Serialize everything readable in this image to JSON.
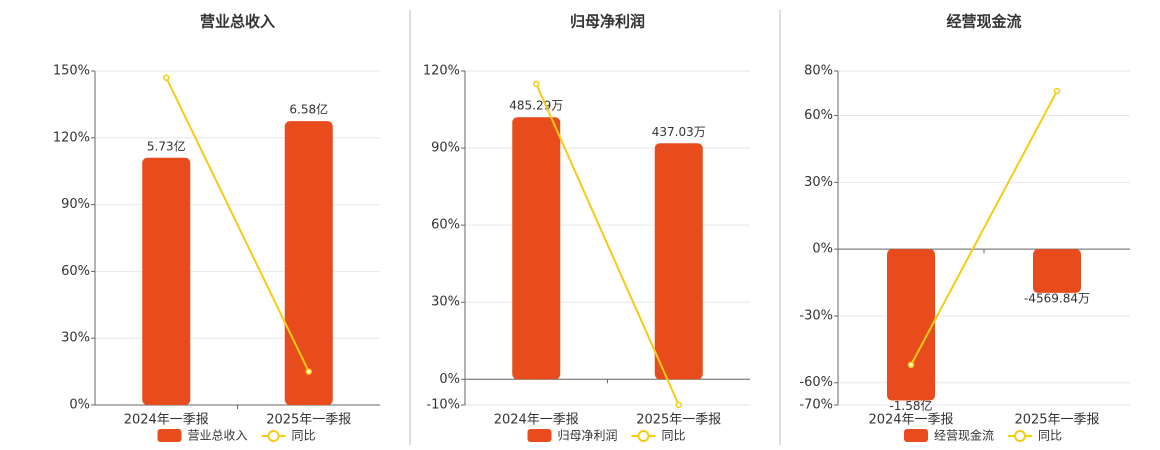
{
  "chart_data": [
    {
      "type": "bar-line",
      "title": "营业总收入",
      "categories": [
        "2024年一季报",
        "2025年一季报"
      ],
      "series": [
        {
          "name": "营业总收入",
          "type": "bar",
          "color": "#e84c1c",
          "values": [
            573000000,
            658000000
          ],
          "value_labels": [
            "5.73亿",
            "6.58亿"
          ]
        },
        {
          "name": "同比",
          "type": "line",
          "color": "#f5cc12",
          "values": [
            147,
            15
          ]
        }
      ],
      "ylim": [
        0,
        150
      ],
      "yticks": [
        {
          "value": 0,
          "label": "0%"
        },
        {
          "value": 30,
          "label": "30%"
        },
        {
          "value": 60,
          "label": "60%"
        },
        {
          "value": 90,
          "label": "90%"
        },
        {
          "value": 120,
          "label": "120%"
        },
        {
          "value": 150,
          "label": "150%"
        }
      ],
      "grid": true
    },
    {
      "type": "bar-line",
      "title": "归母净利润",
      "categories": [
        "2024年一季报",
        "2025年一季报"
      ],
      "series": [
        {
          "name": "归母净利润",
          "type": "bar",
          "color": "#e84c1c",
          "values": [
            4852900,
            4370300
          ],
          "value_labels": [
            "485.29万",
            "437.03万"
          ]
        },
        {
          "name": "同比",
          "type": "line",
          "color": "#f5cc12",
          "values": [
            115,
            -10
          ]
        }
      ],
      "ylim": [
        -10,
        120
      ],
      "yticks": [
        {
          "value": -10,
          "label": "-10%"
        },
        {
          "value": 0,
          "label": "0%"
        },
        {
          "value": 30,
          "label": "30%"
        },
        {
          "value": 60,
          "label": "60%"
        },
        {
          "value": 90,
          "label": "90%"
        },
        {
          "value": 120,
          "label": "120%"
        }
      ],
      "grid": true
    },
    {
      "type": "bar-line",
      "title": "经营现金流",
      "categories": [
        "2024年一季报",
        "2025年一季报"
      ],
      "series": [
        {
          "name": "经营现金流",
          "type": "bar",
          "color": "#e84c1c",
          "values": [
            -158000000,
            -45698400
          ],
          "value_labels": [
            "-1.58亿",
            "-4569.84万"
          ]
        },
        {
          "name": "同比",
          "type": "line",
          "color": "#f5cc12",
          "values": [
            -52,
            71
          ]
        }
      ],
      "ylim": [
        -70,
        80
      ],
      "yticks": [
        {
          "value": -70,
          "label": "-70%"
        },
        {
          "value": -60,
          "label": "-60%"
        },
        {
          "value": -30,
          "label": "-30%"
        },
        {
          "value": 0,
          "label": "0%"
        },
        {
          "value": 30,
          "label": "30%"
        },
        {
          "value": 60,
          "label": "60%"
        },
        {
          "value": 80,
          "label": "80%"
        }
      ],
      "grid": true
    }
  ]
}
